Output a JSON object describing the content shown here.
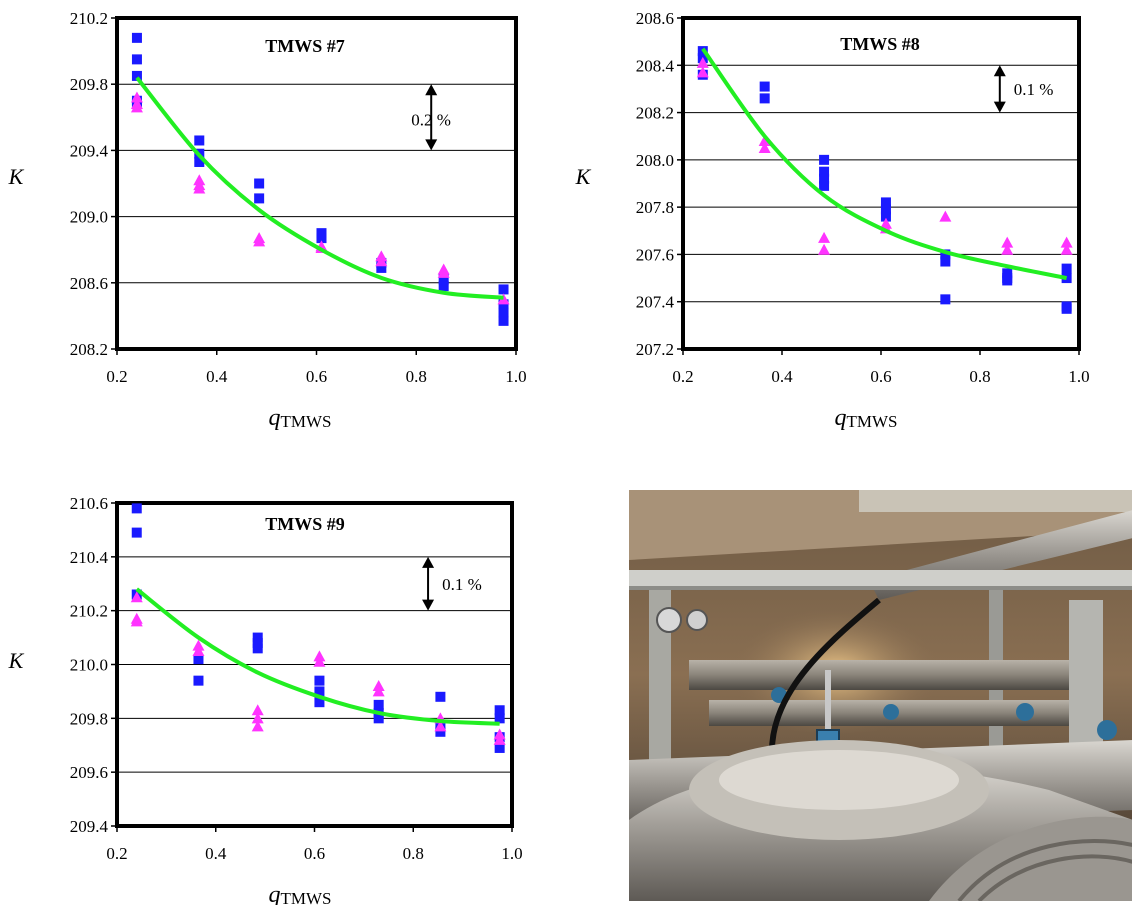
{
  "chart_data": [
    {
      "type": "scatter",
      "title": "TMWS #7",
      "ylabel": "K",
      "xlabel_main": "q",
      "xlabel_sub": "TMWS",
      "xlim": [
        0.2,
        1.0
      ],
      "ylim": [
        208.2,
        210.2
      ],
      "xticks": [
        "0.2",
        "0.4",
        "0.6",
        "0.8",
        "1.0"
      ],
      "yticks": [
        "208.2",
        "208.6",
        "209.0",
        "209.4",
        "209.8",
        "210.2"
      ],
      "ygrid": true,
      "annotation": {
        "text": "0.2 %",
        "x": 0.83,
        "y_from": 209.8,
        "y_to": 209.4
      },
      "series": [
        {
          "marker": "square",
          "color": "#1a1aff",
          "x": [
            0.24,
            0.24,
            0.24,
            0.24,
            0.24,
            0.365,
            0.365,
            0.365,
            0.485,
            0.485,
            0.61,
            0.61,
            0.73,
            0.73,
            0.855,
            0.855,
            0.975,
            0.975,
            0.975,
            0.975
          ],
          "y": [
            210.08,
            209.95,
            209.85,
            209.7,
            209.68,
            209.46,
            209.38,
            209.33,
            209.2,
            209.11,
            208.9,
            208.87,
            208.72,
            208.69,
            208.62,
            208.58,
            208.56,
            208.47,
            208.42,
            208.37
          ]
        },
        {
          "marker": "triangle",
          "color": "#ff33ff",
          "x": [
            0.24,
            0.24,
            0.24,
            0.365,
            0.365,
            0.365,
            0.485,
            0.485,
            0.61,
            0.61,
            0.73,
            0.73,
            0.855,
            0.855,
            0.975
          ],
          "y": [
            209.72,
            209.68,
            209.66,
            209.22,
            209.19,
            209.17,
            208.87,
            208.85,
            208.82,
            208.81,
            208.76,
            208.73,
            208.68,
            208.66,
            208.5
          ]
        },
        {
          "marker": "line",
          "color": "#22ee22",
          "x": [
            0.24,
            0.365,
            0.485,
            0.61,
            0.73,
            0.855,
            0.975
          ],
          "y": [
            209.84,
            209.37,
            209.04,
            208.8,
            208.63,
            208.54,
            208.51
          ]
        }
      ]
    },
    {
      "type": "scatter",
      "title": "TMWS #8",
      "ylabel": "K",
      "xlabel_main": "q",
      "xlabel_sub": "TMWS",
      "xlim": [
        0.2,
        1.0
      ],
      "ylim": [
        207.2,
        208.6
      ],
      "xticks": [
        "0.2",
        "0.4",
        "0.6",
        "0.8",
        "1.0"
      ],
      "yticks": [
        "207.2",
        "207.4",
        "207.6",
        "207.8",
        "208.0",
        "208.2",
        "208.4",
        "208.6"
      ],
      "ygrid": true,
      "annotation": {
        "text": "0.1 %",
        "x": 0.84,
        "y_from": 208.4,
        "y_to": 208.2
      },
      "series": [
        {
          "marker": "square",
          "color": "#1a1aff",
          "x": [
            0.24,
            0.24,
            0.24,
            0.365,
            0.365,
            0.485,
            0.485,
            0.485,
            0.485,
            0.61,
            0.61,
            0.61,
            0.73,
            0.73,
            0.73,
            0.855,
            0.855,
            0.855,
            0.975,
            0.975,
            0.975,
            0.975
          ],
          "y": [
            208.46,
            208.43,
            208.36,
            208.31,
            208.26,
            208.0,
            207.95,
            207.92,
            207.89,
            207.82,
            207.79,
            207.76,
            207.6,
            207.57,
            207.41,
            207.52,
            207.5,
            207.49,
            207.54,
            207.5,
            207.38,
            207.37
          ]
        },
        {
          "marker": "triangle",
          "color": "#ff33ff",
          "x": [
            0.24,
            0.24,
            0.365,
            0.365,
            0.485,
            0.485,
            0.61,
            0.61,
            0.73,
            0.855,
            0.855,
            0.975,
            0.975
          ],
          "y": [
            208.41,
            208.37,
            208.08,
            208.05,
            207.67,
            207.62,
            207.73,
            207.71,
            207.76,
            207.65,
            207.62,
            207.65,
            207.62
          ]
        },
        {
          "marker": "line",
          "color": "#22ee22",
          "x": [
            0.24,
            0.365,
            0.485,
            0.61,
            0.73,
            0.855,
            0.975
          ],
          "y": [
            208.47,
            208.1,
            207.85,
            207.7,
            207.61,
            207.55,
            207.5
          ]
        }
      ]
    },
    {
      "type": "scatter",
      "title": "TMWS #9",
      "ylabel": "K",
      "xlabel_main": "q",
      "xlabel_sub": "TMWS",
      "xlim": [
        0.2,
        1.0
      ],
      "ylim": [
        209.4,
        210.6
      ],
      "xticks": [
        "0.2",
        "0.4",
        "0.6",
        "0.8",
        "1.0"
      ],
      "yticks": [
        "209.4",
        "209.6",
        "209.8",
        "210.0",
        "210.2",
        "210.4",
        "210.6"
      ],
      "ygrid": true,
      "annotation": {
        "text": "0.1 %",
        "x": 0.83,
        "y_from": 210.4,
        "y_to": 210.2
      },
      "series": [
        {
          "marker": "square",
          "color": "#1a1aff",
          "x": [
            0.24,
            0.24,
            0.24,
            0.365,
            0.365,
            0.485,
            0.485,
            0.485,
            0.61,
            0.61,
            0.61,
            0.73,
            0.73,
            0.73,
            0.855,
            0.855,
            0.855,
            0.975,
            0.975,
            0.975,
            0.975
          ],
          "y": [
            210.58,
            210.49,
            210.26,
            210.02,
            209.94,
            210.1,
            210.08,
            210.06,
            209.94,
            209.9,
            209.86,
            209.85,
            209.82,
            209.8,
            209.88,
            209.77,
            209.75,
            209.83,
            209.8,
            209.73,
            209.69
          ]
        },
        {
          "marker": "triangle",
          "color": "#ff33ff",
          "x": [
            0.24,
            0.24,
            0.24,
            0.365,
            0.365,
            0.485,
            0.485,
            0.485,
            0.61,
            0.61,
            0.73,
            0.73,
            0.855,
            0.855,
            0.975,
            0.975
          ],
          "y": [
            210.25,
            210.17,
            210.16,
            210.07,
            210.05,
            209.83,
            209.8,
            209.77,
            210.03,
            210.01,
            209.92,
            209.9,
            209.8,
            209.77,
            209.74,
            209.72
          ]
        },
        {
          "marker": "line",
          "color": "#22ee22",
          "x": [
            0.24,
            0.365,
            0.485,
            0.61,
            0.73,
            0.855,
            0.975
          ],
          "y": [
            210.28,
            210.1,
            209.97,
            209.88,
            209.82,
            209.79,
            209.78
          ]
        }
      ]
    }
  ],
  "photo": {
    "icon": "instrumentation-photo"
  }
}
